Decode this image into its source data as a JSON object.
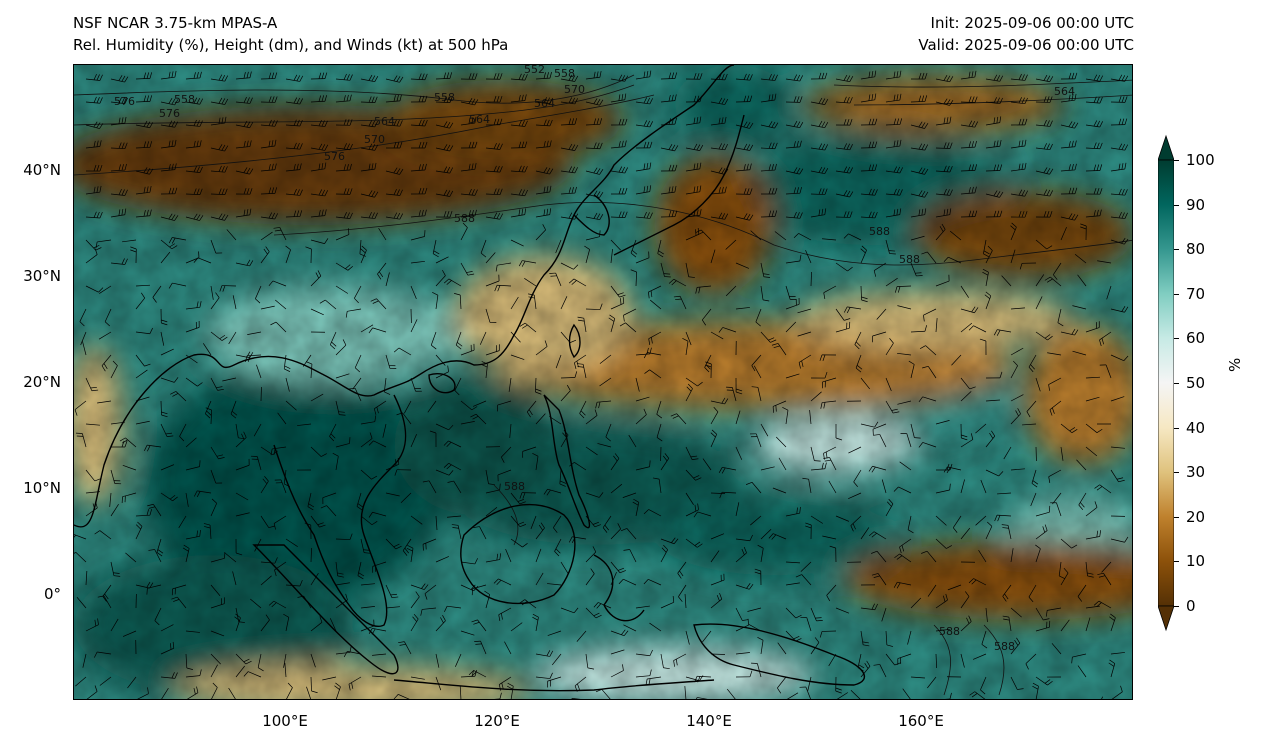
{
  "header": {
    "model": "NSF NCAR 3.75-km MPAS-A",
    "fields": "Rel. Humidity (%), Height (dm), and Winds (kt) at 500 hPa",
    "init": "Init: 2025-09-06 00:00 UTC",
    "valid": "Valid: 2025-09-06 00:00 UTC"
  },
  "axes": {
    "lat_labels": [
      {
        "text": "40°N",
        "lat": 40
      },
      {
        "text": "30°N",
        "lat": 30
      },
      {
        "text": "20°N",
        "lat": 20
      },
      {
        "text": "10°N",
        "lat": 10
      },
      {
        "text": "0°",
        "lat": 0
      }
    ],
    "lon_labels": [
      {
        "text": "100°E",
        "lon": 100
      },
      {
        "text": "120°E",
        "lon": 120
      },
      {
        "text": "140°E",
        "lon": 140
      },
      {
        "text": "160°E",
        "lon": 160
      }
    ],
    "lon_range": [
      80,
      180
    ],
    "lat_range": [
      -10,
      50
    ]
  },
  "colorbar": {
    "unit": "%",
    "ticks": [
      "0",
      "10",
      "20",
      "30",
      "40",
      "50",
      "60",
      "70",
      "80",
      "90",
      "100"
    ],
    "colors": [
      "#543005",
      "#8c510a",
      "#bf812d",
      "#dfc27d",
      "#f6e8c3",
      "#f5f5f5",
      "#c7eae5",
      "#80cdc1",
      "#35978f",
      "#01665e",
      "#003c30"
    ]
  },
  "contour_labels": [
    "552",
    "558",
    "558",
    "558",
    "564",
    "564",
    "564",
    "564",
    "570",
    "570",
    "576",
    "576",
    "576",
    "588",
    "588",
    "588",
    "588",
    "588",
    "588"
  ]
}
